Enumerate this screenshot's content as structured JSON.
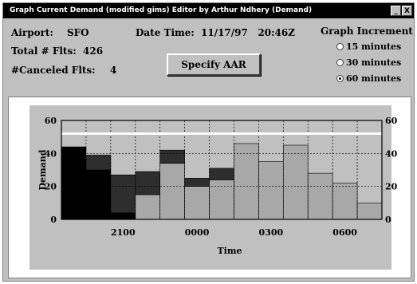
{
  "window": {
    "title": "Graph Current Demand (modified gims) Editor by Arthur Ndhery (Demand)",
    "buttons": [
      "_",
      "X"
    ]
  },
  "info": {
    "airport_label": "Airport:",
    "airport_value": "SFO",
    "datetime_label": "Date Time:",
    "datetime_value": "11/17/97   20:46Z",
    "total_label": "Total # Flts:",
    "total_value": "426",
    "canceled_label": "#Canceled Flts:",
    "canceled_value": "4"
  },
  "aar_button": "Specify AAR",
  "graph_increment": {
    "title": "Graph Increment",
    "options": [
      "15 minutes",
      "30 minutes",
      "60 minutes"
    ],
    "selected": 2
  },
  "chart_data": {
    "type": "bar",
    "title": "",
    "xlabel": "Time",
    "ylabel": "Demand",
    "ylim": [
      0,
      60
    ],
    "yticks": [
      0,
      20,
      40,
      60
    ],
    "xticks": [
      "2100",
      "0000",
      "0300",
      "0600"
    ],
    "x_tick_slots": [
      2.5,
      5.5,
      8.5,
      11.5
    ],
    "bin_count": 13,
    "capacity_line": 52,
    "grid": true,
    "colors": {
      "active": "#000000",
      "proposed": "#2e2e2e",
      "scheduled": "#a8a8a8",
      "capacity": "#ffffff"
    },
    "bins": [
      {
        "segments": [
          {
            "type": "active",
            "value": 44
          }
        ]
      },
      {
        "segments": [
          {
            "type": "active",
            "value": 30
          },
          {
            "type": "proposed",
            "value": 9
          }
        ]
      },
      {
        "segments": [
          {
            "type": "active",
            "value": 4
          },
          {
            "type": "proposed",
            "value": 23
          }
        ]
      },
      {
        "segments": [
          {
            "type": "scheduled",
            "value": 15
          },
          {
            "type": "proposed",
            "value": 14
          }
        ]
      },
      {
        "segments": [
          {
            "type": "scheduled",
            "value": 34
          },
          {
            "type": "proposed",
            "value": 8
          }
        ]
      },
      {
        "segments": [
          {
            "type": "scheduled",
            "value": 20
          },
          {
            "type": "proposed",
            "value": 5
          }
        ]
      },
      {
        "segments": [
          {
            "type": "scheduled",
            "value": 24
          },
          {
            "type": "proposed",
            "value": 7
          }
        ]
      },
      {
        "segments": [
          {
            "type": "scheduled",
            "value": 46
          }
        ]
      },
      {
        "segments": [
          {
            "type": "scheduled",
            "value": 35
          }
        ]
      },
      {
        "segments": [
          {
            "type": "scheduled",
            "value": 45
          }
        ]
      },
      {
        "segments": [
          {
            "type": "scheduled",
            "value": 28
          }
        ]
      },
      {
        "segments": [
          {
            "type": "scheduled",
            "value": 22
          }
        ]
      },
      {
        "segments": [
          {
            "type": "scheduled",
            "value": 10
          }
        ]
      }
    ]
  }
}
